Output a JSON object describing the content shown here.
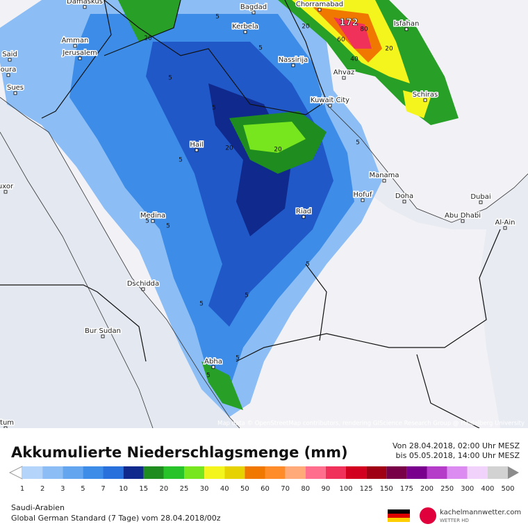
{
  "map": {
    "cities": [
      "Damaskus",
      "Bagdad",
      "Chorramabad",
      "Isfahan",
      "Kerbela",
      "Amman",
      "Jerusalem",
      "Nassirija",
      "Ahvaz",
      "Said",
      "oura",
      "Sues",
      "Kuwait City",
      "Schiras",
      "Hail",
      "Manama",
      "Hofuf",
      "Doha",
      "Dubai",
      "uxor",
      "Medina",
      "Riad",
      "Abu Dhabi",
      "Al-Ain",
      "Dschidda",
      "Bur Sudan",
      "Abha",
      "rtum"
    ],
    "contour_labels": [
      "20",
      "20",
      "5",
      "5",
      "5",
      "5",
      "20",
      "20",
      "5",
      "5",
      "5",
      "5",
      "5",
      "5",
      "5",
      "5",
      "60",
      "40",
      "80",
      "20",
      "5"
    ],
    "peak": "172",
    "attribution": "Map data © OpenStreetMap contributors, rendering GIScience Research Group @ Heidelberg University"
  },
  "legend": {
    "title": "Akkumulierte Niederschlagsmenge (mm)",
    "period_from": "Von 28.04.2018, 02:00 Uhr MESZ",
    "period_to": "bis 05.05.2018, 14:00 Uhr MESZ",
    "scale": [
      {
        "value": 1,
        "color": "#b4d4fa"
      },
      {
        "value": 2,
        "color": "#8cbef5"
      },
      {
        "value": 3,
        "color": "#64a5f0"
      },
      {
        "value": 5,
        "color": "#3c8ce8"
      },
      {
        "value": 7,
        "color": "#2870dc"
      },
      {
        "value": 10,
        "color": "#0f2a8c"
      },
      {
        "value": 15,
        "color": "#1e8c1e"
      },
      {
        "value": 20,
        "color": "#28c328"
      },
      {
        "value": 25,
        "color": "#78e61e"
      },
      {
        "value": 30,
        "color": "#f5f51e"
      },
      {
        "value": 40,
        "color": "#e6d200"
      },
      {
        "value": 50,
        "color": "#f07800"
      },
      {
        "value": 60,
        "color": "#ff8c28"
      },
      {
        "value": 70,
        "color": "#ffaa78"
      },
      {
        "value": 80,
        "color": "#ff6e8c"
      },
      {
        "value": 90,
        "color": "#f0325a"
      },
      {
        "value": 100,
        "color": "#d2001e"
      },
      {
        "value": 125,
        "color": "#a00014"
      },
      {
        "value": 150,
        "color": "#780046"
      },
      {
        "value": 175,
        "color": "#78008c"
      },
      {
        "value": 200,
        "color": "#b43cc8"
      },
      {
        "value": 250,
        "color": "#dc8cf0"
      },
      {
        "value": 300,
        "color": "#f0d2fa"
      },
      {
        "value": 400,
        "color": "#d2d2d2"
      },
      {
        "value": 500,
        "color": "#8c8c8c"
      }
    ]
  },
  "footer": {
    "region": "Saudi-Arabien",
    "model": "Global German Standard (7 Tage) vom 28.04.2018/00z",
    "brand": "kachelmannwetter.com",
    "brand_sub": "WETTER HD"
  }
}
